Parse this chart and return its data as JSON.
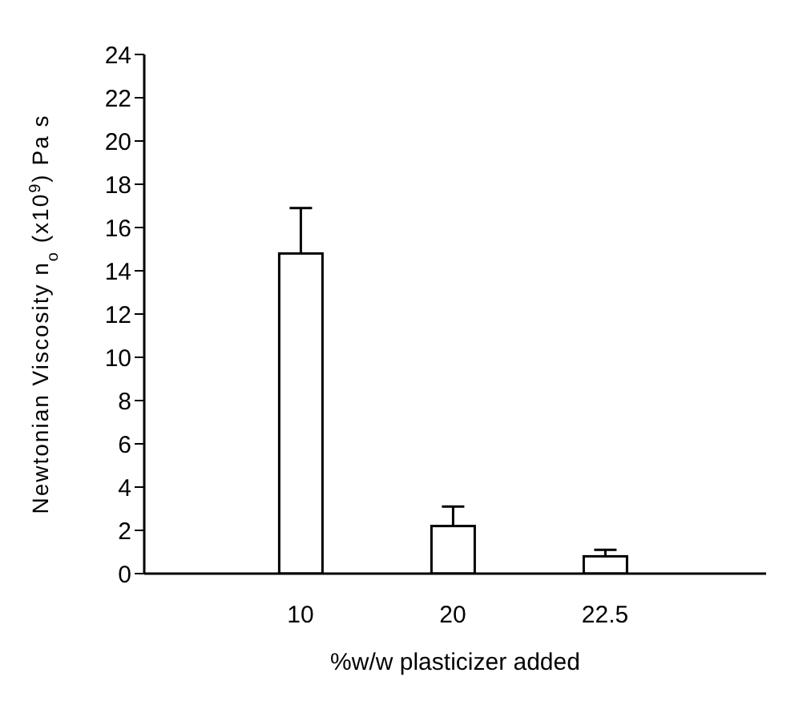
{
  "chart_data": {
    "type": "bar",
    "xlabel": "%w/w plasticizer added",
    "ylabel": "Newtonian Viscosity n$_{o}$  (x10$^{9}$) Pa s",
    "categories": [
      "10",
      "20",
      "22.5"
    ],
    "values": [
      14.8,
      2.2,
      0.8
    ],
    "errors": [
      [
        14.8,
        16.9
      ],
      [
        2.2,
        3.1
      ],
      [
        0.8,
        1.1
      ]
    ],
    "color": "#ffffff",
    "ylim": [
      0,
      24
    ],
    "yticks": [
      0,
      2,
      4,
      6,
      8,
      10,
      12,
      14,
      16,
      18,
      20,
      22,
      24
    ]
  }
}
